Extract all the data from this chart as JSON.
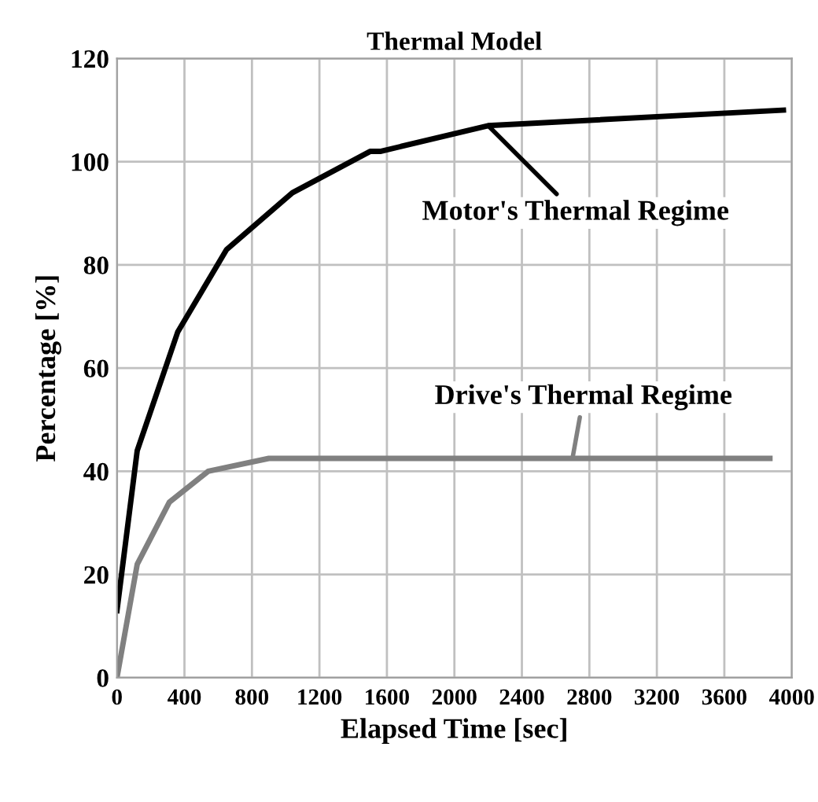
{
  "chart_data": {
    "type": "line",
    "title": "Thermal Model",
    "xlabel": "Elapsed Time [sec]",
    "ylabel": "Percentage [%]",
    "series": [
      {
        "color": "#000000",
        "x": [
          0,
          120,
          360,
          650,
          1040,
          1500,
          1560,
          2200,
          3950
        ],
        "values": [
          13,
          44,
          67,
          83,
          94,
          102,
          102,
          107,
          110
        ]
      },
      {
        "color": "#808080",
        "x": [
          0,
          120,
          310,
          540,
          900,
          3870
        ],
        "values": [
          0,
          22,
          34,
          40,
          42.5,
          42.5
        ]
      }
    ],
    "annotations": [
      {
        "text": "Motor's Thermal Regime",
        "x": 2200,
        "y": 107
      },
      {
        "text": "Drive's Thermal Regime",
        "x": 2700,
        "y": 42.5
      }
    ],
    "xlim": [
      0,
      4000
    ],
    "xticks": [
      0,
      400,
      800,
      1200,
      1600,
      2000,
      2400,
      2800,
      3200,
      3600,
      4000
    ],
    "ylim": [
      0,
      120
    ],
    "yticks": [
      0,
      20,
      40,
      60,
      80,
      100,
      120
    ],
    "grid": true,
    "legend": false,
    "marker": "none",
    "line_style": "solid"
  }
}
